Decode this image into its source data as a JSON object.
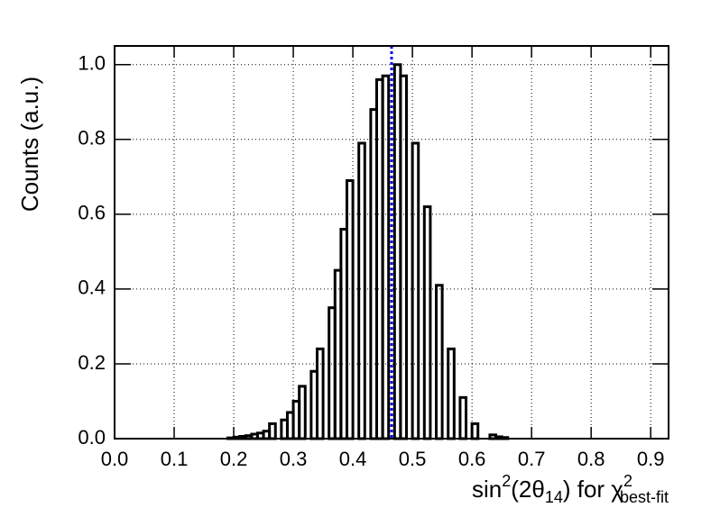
{
  "chart_data": {
    "type": "histogram",
    "y_label": "Counts (a.u.)",
    "x_label_parts": [
      "sin",
      "2",
      "(2θ",
      "14",
      ") for χ",
      "2",
      "best-fit"
    ],
    "bins": [
      0.19,
      0.2,
      0.21,
      0.22,
      0.23,
      0.24,
      0.25,
      0.26,
      0.27,
      0.28,
      0.29,
      0.3,
      0.31,
      0.32,
      0.33,
      0.34,
      0.35,
      0.36,
      0.37,
      0.38,
      0.39,
      0.4,
      0.41,
      0.42,
      0.43,
      0.44,
      0.45,
      0.46,
      0.47,
      0.48,
      0.49,
      0.5,
      0.51,
      0.52,
      0.53,
      0.54,
      0.55,
      0.56,
      0.57,
      0.58,
      0.59,
      0.6,
      0.61,
      0.62,
      0.63,
      0.64,
      0.65,
      0.66
    ],
    "counts": [
      0.002,
      0.004,
      0.006,
      0.008,
      0.012,
      0.015,
      0.02,
      0.04,
      0,
      0.05,
      0.07,
      0.1,
      0.14,
      0,
      0.18,
      0.24,
      0,
      0.35,
      0.45,
      0.56,
      0.69,
      0,
      0.79,
      0,
      0.88,
      0.96,
      0.97,
      0,
      1.0,
      0.97,
      0,
      0.79,
      0,
      0.62,
      0,
      0.41,
      0,
      0.24,
      0,
      0.11,
      0,
      0.04,
      0,
      0,
      0.01,
      0.005,
      0.003
    ],
    "color": "#000000",
    "best_fit_x": 0.465,
    "best_fit_color": "#0000ee",
    "xlim": [
      0,
      0.93
    ],
    "ylim": [
      0,
      1.05
    ],
    "xticks": [
      {
        "value": 0,
        "label": "0.0"
      },
      0.1,
      0.2,
      0.3,
      0.4,
      0.5,
      0.6,
      0.7,
      0.8,
      0.9
    ],
    "yticks": [
      {
        "value": 0,
        "label": "0.0"
      },
      0.2,
      0.4,
      0.6,
      0.8,
      {
        "value": 1,
        "label": "1.0"
      }
    ],
    "grid": true
  }
}
